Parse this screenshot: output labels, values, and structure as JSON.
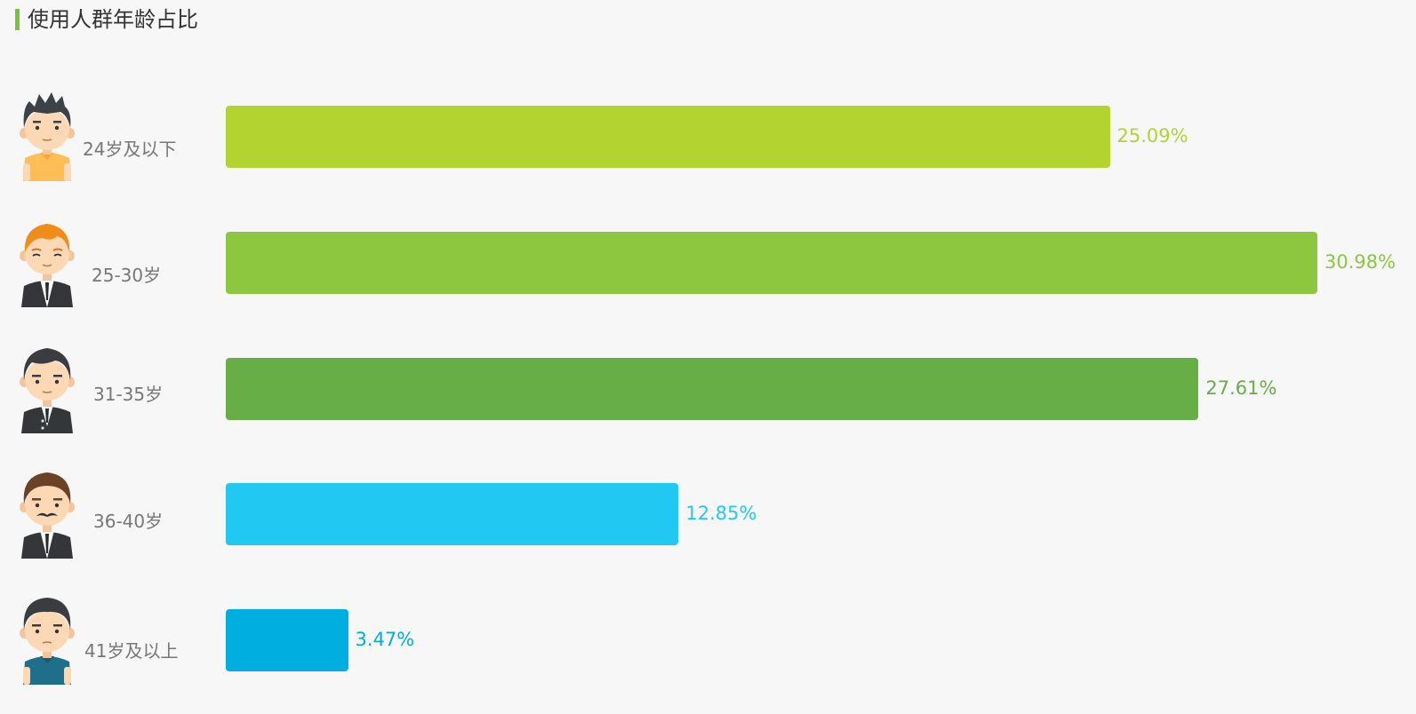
{
  "title": "使用人群年龄占比",
  "colors": {
    "title_accent": "#7bc142",
    "label": "#777777"
  },
  "chart_data": {
    "type": "bar",
    "orientation": "horizontal",
    "categories": [
      "24岁及以下",
      "25-30岁",
      "31-35岁",
      "36-40岁",
      "41岁及以上"
    ],
    "values": [
      25.09,
      30.98,
      27.61,
      12.85,
      3.47
    ],
    "value_labels": [
      "25.09%",
      "30.98%",
      "27.61%",
      "12.85%",
      "3.47%"
    ],
    "bar_colors": [
      "#b2d330",
      "#8dc63f",
      "#66ae45",
      "#20c8f2",
      "#00aee0"
    ],
    "title": "使用人群年龄占比",
    "xlabel": "",
    "ylabel": "",
    "grid": false,
    "icons": [
      "young-boy-tshirt-icon",
      "orange-hair-man-suit-icon",
      "man-suit-icon",
      "mustache-man-suit-icon",
      "man-blue-shirt-icon"
    ]
  }
}
